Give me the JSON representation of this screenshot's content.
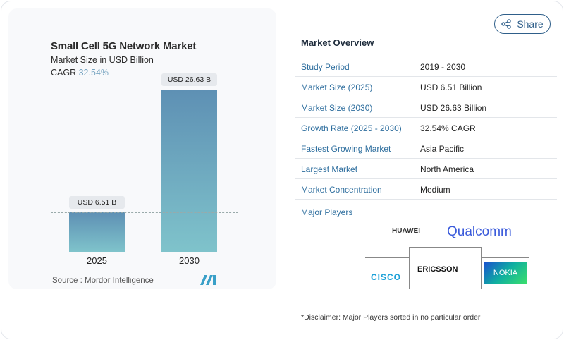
{
  "share_label": "Share",
  "chart_data": {
    "type": "bar",
    "title": "Small Cell 5G Network Market",
    "subtitle": "Market Size in USD Billion",
    "cagr_label": "CAGR",
    "cagr_value": "32.54%",
    "categories": [
      "2025",
      "2030"
    ],
    "values": [
      6.51,
      26.63
    ],
    "data_labels": [
      "USD 6.51 B",
      "USD 26.63 B"
    ],
    "ylim": [
      0,
      26.63
    ],
    "bar_colors": [
      "#5e90b4",
      "#7fc3cb"
    ],
    "source": "Source :  Mordor Intelligence"
  },
  "overview": {
    "title": "Market Overview",
    "rows": [
      {
        "k": "Study Period",
        "v": "2019 - 2030"
      },
      {
        "k": "Market Size (2025)",
        "v": "USD 6.51 Billion"
      },
      {
        "k": "Market Size (2030)",
        "v": "USD 26.63 Billion"
      },
      {
        "k": "Growth Rate (2025 - 2030)",
        "v": "32.54% CAGR"
      },
      {
        "k": "Fastest Growing Market",
        "v": "Asia Pacific"
      },
      {
        "k": "Largest Market",
        "v": "North America"
      },
      {
        "k": "Market Concentration",
        "v": "Medium"
      }
    ],
    "major_players_label": "Major Players",
    "players": [
      "HUAWEI",
      "Qualcomm",
      "CISCO",
      "ERICSSON",
      "NOKIA"
    ]
  },
  "disclaimer": "*Disclaimer: Major Players sorted in no particular order"
}
